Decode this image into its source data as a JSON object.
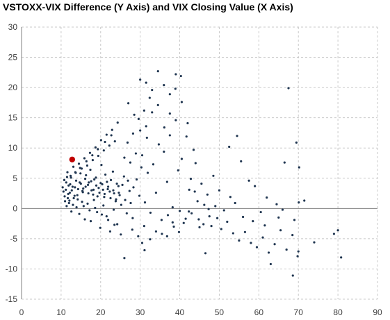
{
  "title": "VSTOXX-VIX Difference (Y Axis) and VIX Closing Value (X Axis)",
  "chart_data": {
    "type": "scatter",
    "title": "VSTOXX-VIX Difference (Y Axis) and VIX Closing Value (X Axis)",
    "xlabel": "",
    "ylabel": "",
    "xlim": [
      0,
      90
    ],
    "ylim": [
      -15,
      30
    ],
    "x_ticks": [
      0,
      10,
      20,
      30,
      40,
      50,
      60,
      70,
      80,
      90
    ],
    "y_ticks": [
      -15,
      -10,
      -5,
      0,
      5,
      10,
      15,
      20,
      25,
      30
    ],
    "grid": "dashed",
    "legend": "none",
    "colors": {
      "points": "#1f3550",
      "highlight": "#c00000",
      "grid": "#c8c8c8",
      "axis": "#808080"
    },
    "highlight_point": {
      "x": 12.8,
      "y": 8.1
    },
    "series": [
      {
        "values": [
          [
            11.2,
            3.1
          ],
          [
            11.8,
            2.4
          ],
          [
            12.3,
            4.0
          ],
          [
            12.9,
            3.6
          ],
          [
            13.4,
            2.1
          ],
          [
            10.6,
            2.8
          ],
          [
            11.5,
            5.2
          ],
          [
            12.1,
            1.3
          ],
          [
            13.8,
            4.6
          ],
          [
            14.3,
            3.2
          ],
          [
            14.9,
            5.8
          ],
          [
            15.5,
            2.7
          ],
          [
            16.1,
            4.9
          ],
          [
            16.8,
            3.9
          ],
          [
            17.4,
            6.4
          ],
          [
            18.1,
            2.3
          ],
          [
            18.8,
            5.1
          ],
          [
            19.5,
            3.4
          ],
          [
            20.2,
            7.2
          ],
          [
            20.9,
            1.9
          ],
          [
            21.6,
            4.4
          ],
          [
            22.3,
            2.8
          ],
          [
            23.1,
            6.1
          ],
          [
            23.8,
            1.2
          ],
          [
            24.5,
            3.7
          ],
          [
            25.2,
            0.6
          ],
          [
            25.9,
            5.3
          ],
          [
            26.6,
            -0.8
          ],
          [
            27.3,
            2.9
          ],
          [
            28.1,
            -1.6
          ],
          [
            11.0,
            1.2
          ],
          [
            11.4,
            0.4
          ],
          [
            12.0,
            0.9
          ],
          [
            12.6,
            -0.5
          ],
          [
            13.2,
            1.7
          ],
          [
            13.9,
            0.2
          ],
          [
            14.6,
            -0.9
          ],
          [
            15.3,
            1.1
          ],
          [
            16.0,
            -1.8
          ],
          [
            16.7,
            0.8
          ],
          [
            17.5,
            -2.1
          ],
          [
            18.3,
            1.4
          ],
          [
            19.1,
            -0.6
          ],
          [
            19.9,
            -3.2
          ],
          [
            20.7,
            0.5
          ],
          [
            21.5,
            -1.3
          ],
          [
            22.4,
            -3.8
          ],
          [
            23.3,
            -0.2
          ],
          [
            24.2,
            -2.6
          ],
          [
            25.1,
            -4.3
          ],
          [
            10.8,
            4.7
          ],
          [
            11.6,
            6.0
          ],
          [
            12.4,
            5.4
          ],
          [
            13.1,
            6.9
          ],
          [
            13.7,
            5.9
          ],
          [
            14.5,
            7.4
          ],
          [
            15.2,
            6.6
          ],
          [
            15.9,
            8.3
          ],
          [
            16.6,
            7.1
          ],
          [
            17.3,
            9.2
          ],
          [
            18.0,
            8.0
          ],
          [
            18.7,
            10.1
          ],
          [
            19.4,
            8.7
          ],
          [
            20.1,
            11.3
          ],
          [
            20.8,
            9.6
          ],
          [
            21.5,
            12.2
          ],
          [
            22.2,
            10.4
          ],
          [
            22.9,
            13.0
          ],
          [
            23.6,
            11.1
          ],
          [
            24.3,
            14.2
          ],
          [
            15.0,
            4.1
          ],
          [
            15.6,
            3.3
          ],
          [
            16.3,
            5.5
          ],
          [
            17.0,
            4.3
          ],
          [
            17.7,
            3.0
          ],
          [
            18.4,
            4.8
          ],
          [
            19.2,
            2.0
          ],
          [
            20.0,
            4.2
          ],
          [
            20.6,
            3.1
          ],
          [
            21.2,
            5.6
          ],
          [
            21.9,
            3.6
          ],
          [
            22.6,
            4.7
          ],
          [
            23.4,
            2.5
          ],
          [
            24.1,
            4.1
          ],
          [
            24.8,
            2.2
          ],
          [
            25.5,
            3.9
          ],
          [
            26.2,
            1.4
          ],
          [
            26.9,
            4.6
          ],
          [
            27.6,
            0.9
          ],
          [
            28.3,
            3.5
          ],
          [
            26.0,
            8.4
          ],
          [
            26.8,
            10.9
          ],
          [
            27.5,
            7.6
          ],
          [
            28.2,
            12.4
          ],
          [
            28.9,
            9.1
          ],
          [
            29.6,
            14.8
          ],
          [
            30.3,
            6.8
          ],
          [
            31.0,
            16.2
          ],
          [
            31.7,
            11.7
          ],
          [
            32.4,
            18.3
          ],
          [
            29.1,
            4.8
          ],
          [
            29.8,
            2.1
          ],
          [
            30.5,
            8.8
          ],
          [
            31.2,
            1.0
          ],
          [
            31.9,
            5.9
          ],
          [
            32.6,
            -0.7
          ],
          [
            33.3,
            7.3
          ],
          [
            34.0,
            2.6
          ],
          [
            34.7,
            10.6
          ],
          [
            35.4,
            -1.9
          ],
          [
            36.1,
            13.4
          ],
          [
            36.8,
            4.4
          ],
          [
            37.5,
            15.7
          ],
          [
            38.2,
            0.2
          ],
          [
            38.9,
            19.8
          ],
          [
            39.6,
            6.3
          ],
          [
            40.3,
            21.9
          ],
          [
            41.0,
            -2.4
          ],
          [
            41.7,
            11.9
          ],
          [
            42.4,
            3.1
          ],
          [
            30.0,
            21.3
          ],
          [
            31.5,
            20.8
          ],
          [
            33.0,
            19.6
          ],
          [
            34.5,
            22.7
          ],
          [
            36.0,
            20.4
          ],
          [
            37.5,
            18.9
          ],
          [
            39.0,
            22.2
          ],
          [
            40.5,
            17.6
          ],
          [
            42.0,
            14.1
          ],
          [
            43.5,
            9.7
          ],
          [
            27.0,
            17.4
          ],
          [
            28.5,
            15.5
          ],
          [
            30.0,
            12.9
          ],
          [
            31.5,
            13.6
          ],
          [
            33.0,
            15.9
          ],
          [
            34.5,
            17.1
          ],
          [
            36.0,
            9.4
          ],
          [
            37.5,
            12.1
          ],
          [
            39.0,
            14.6
          ],
          [
            40.5,
            8.2
          ],
          [
            28.0,
            -3.5
          ],
          [
            29.5,
            -4.6
          ],
          [
            31.0,
            -2.9
          ],
          [
            32.5,
            -5.1
          ],
          [
            34.0,
            -3.8
          ],
          [
            35.5,
            -4.2
          ],
          [
            37.0,
            -1.1
          ],
          [
            38.5,
            -3.0
          ],
          [
            40.0,
            -0.4
          ],
          [
            41.5,
            -1.7
          ],
          [
            43.0,
            -0.8
          ],
          [
            44.5,
            1.2
          ],
          [
            46.0,
            -2.6
          ],
          [
            47.5,
            -1.3
          ],
          [
            49.0,
            0.4
          ],
          [
            50.5,
            -3.4
          ],
          [
            52.0,
            -2.2
          ],
          [
            53.5,
            -4.1
          ],
          [
            55.0,
            -5.3
          ],
          [
            56.5,
            -3.9
          ],
          [
            58.0,
            -5.7
          ],
          [
            59.5,
            -6.4
          ],
          [
            61.0,
            -4.8
          ],
          [
            62.5,
            -7.3
          ],
          [
            64.0,
            -5.9
          ],
          [
            65.5,
            -3.6
          ],
          [
            67.0,
            -6.8
          ],
          [
            68.5,
            -4.4
          ],
          [
            70.0,
            -7.1
          ],
          [
            74.0,
            -5.6
          ],
          [
            79.0,
            -4.2
          ],
          [
            80.0,
            -3.6
          ],
          [
            80.8,
            -8.1
          ],
          [
            69.8,
            -7.9
          ],
          [
            63.0,
            -9.2
          ],
          [
            68.6,
            -11.1
          ],
          [
            46.5,
            -7.4
          ],
          [
            31.1,
            -6.9
          ],
          [
            26.0,
            -8.2
          ],
          [
            30.5,
            -5.7
          ],
          [
            44.0,
            7.5
          ],
          [
            45.5,
            4.1
          ],
          [
            47.0,
            2.3
          ],
          [
            48.5,
            5.4
          ],
          [
            50.0,
            3.0
          ],
          [
            52.5,
            10.2
          ],
          [
            54.5,
            12.0
          ],
          [
            55.5,
            7.8
          ],
          [
            57.5,
            4.6
          ],
          [
            59.0,
            3.7
          ],
          [
            60.5,
            -0.6
          ],
          [
            62.0,
            1.8
          ],
          [
            64.5,
            0.7
          ],
          [
            66.5,
            7.6
          ],
          [
            67.5,
            19.9
          ],
          [
            69.5,
            10.9
          ],
          [
            70.2,
            6.8
          ],
          [
            70.1,
            1.0
          ],
          [
            71.5,
            1.3
          ],
          [
            66.0,
            -0.2
          ],
          [
            56.0,
            -1.4
          ],
          [
            54.0,
            0.9
          ],
          [
            58.5,
            -2.1
          ],
          [
            61.5,
            -2.8
          ],
          [
            65.0,
            -1.5
          ],
          [
            69.0,
            -1.9
          ],
          [
            42.8,
            4.9
          ],
          [
            44.8,
            -1.8
          ],
          [
            46.2,
            0.6
          ],
          [
            48.0,
            -2.9
          ],
          [
            36.8,
            -4.6
          ],
          [
            38.2,
            -2.3
          ],
          [
            39.8,
            -3.9
          ],
          [
            42.3,
            -0.5
          ],
          [
            43.8,
            2.8
          ],
          [
            45.0,
            -3.1
          ],
          [
            47.3,
            -0.1
          ],
          [
            49.5,
            -1.6
          ],
          [
            51.2,
            -0.3
          ],
          [
            52.8,
            1.9
          ],
          [
            12.2,
            2.6
          ],
          [
            11.9,
            3.8
          ],
          [
            12.7,
            3.0
          ],
          [
            13.5,
            3.5
          ],
          [
            14.1,
            2.2
          ],
          [
            14.7,
            4.3
          ],
          [
            15.4,
            2.9
          ],
          [
            16.2,
            3.6
          ],
          [
            16.9,
            2.5
          ],
          [
            17.6,
            4.5
          ],
          [
            18.2,
            3.1
          ],
          [
            18.9,
            3.8
          ],
          [
            19.7,
            2.6
          ],
          [
            20.4,
            4.0
          ],
          [
            21.0,
            2.4
          ],
          [
            21.8,
            3.2
          ],
          [
            22.5,
            1.7
          ],
          [
            23.2,
            3.0
          ],
          [
            23.9,
            1.5
          ],
          [
            24.6,
            2.6
          ],
          [
            10.4,
            3.5
          ],
          [
            10.9,
            2.0
          ],
          [
            11.3,
            4.3
          ],
          [
            11.7,
            1.7
          ],
          [
            12.5,
            5.1
          ],
          [
            13.0,
            0.6
          ],
          [
            13.6,
            6.0
          ],
          [
            14.2,
            1.5
          ],
          [
            14.8,
            6.7
          ],
          [
            15.7,
            0.4
          ],
          [
            16.4,
            7.8
          ],
          [
            17.2,
            -0.3
          ],
          [
            17.9,
            8.8
          ],
          [
            18.6,
            0.1
          ],
          [
            19.3,
            9.8
          ],
          [
            20.3,
            -1.0
          ],
          [
            21.1,
            11.0
          ],
          [
            21.9,
            -1.9
          ],
          [
            22.7,
            12.1
          ],
          [
            23.5,
            -2.7
          ]
        ]
      }
    ]
  }
}
